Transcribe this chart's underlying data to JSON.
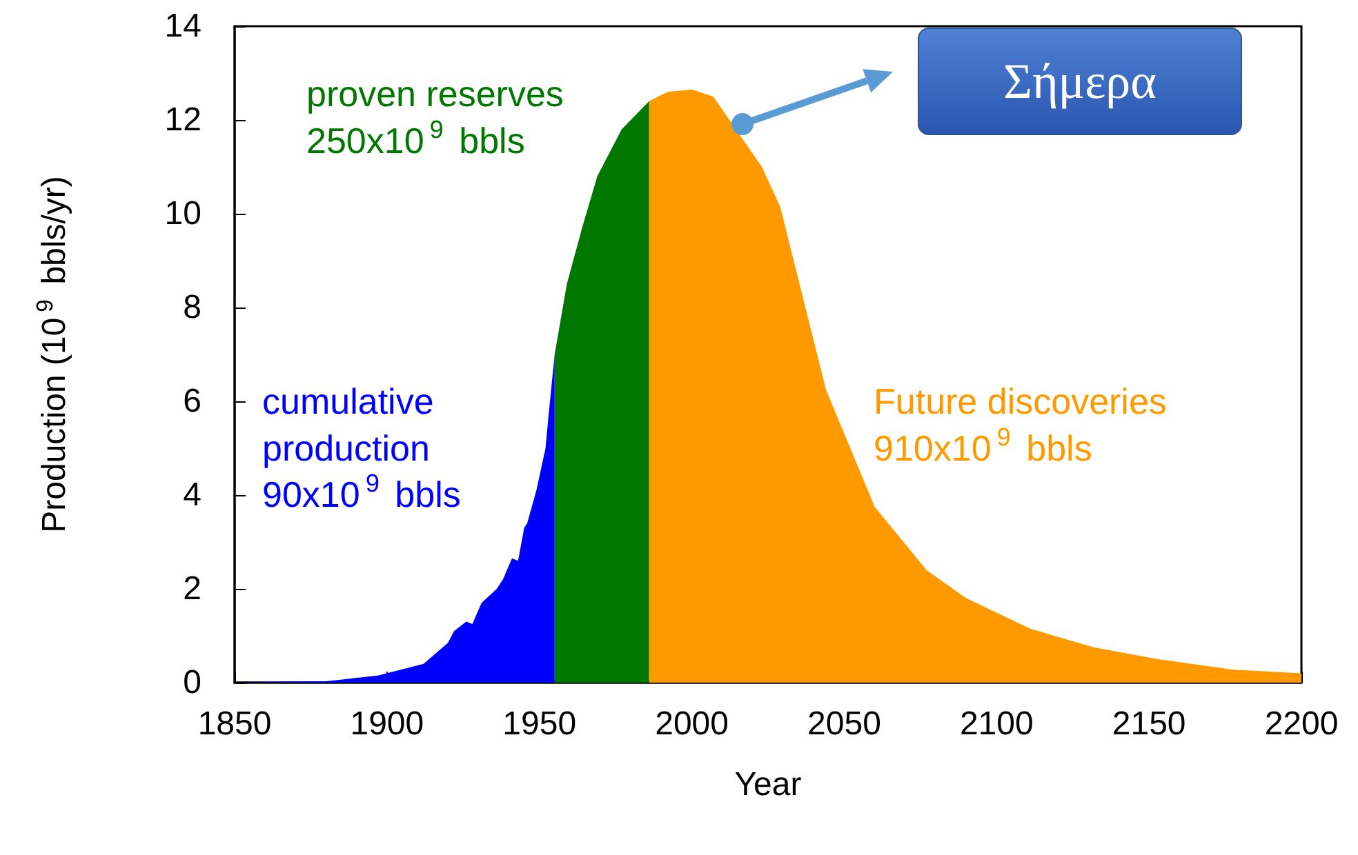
{
  "chart_data": {
    "type": "area",
    "xlabel": "Year",
    "ylabel": "Production (10$^{9}$ bbls/yr)",
    "xlim": [
      1850,
      2200
    ],
    "xticks": [
      1850,
      1900,
      1950,
      2000,
      2050,
      2100,
      2150,
      2200
    ],
    "ylim": [
      0,
      14
    ],
    "yticks": [
      0,
      2,
      4,
      6,
      8,
      10,
      12,
      14
    ],
    "grid": false,
    "legend": false,
    "series": [
      {
        "name": "cumulative\nproduction\n90x10$^{9}$ bbls",
        "color": "#0000ff",
        "x": [
          1850,
          1880,
          1897,
          1912,
          1920,
          1922,
          1926,
          1928,
          1931,
          1936,
          1938,
          1941,
          1943,
          1945,
          1946,
          1949,
          1952,
          1953,
          1955
        ],
        "values": [
          0,
          0.03,
          0.15,
          0.4,
          0.85,
          1.1,
          1.3,
          1.25,
          1.7,
          2.0,
          2.2,
          2.65,
          2.6,
          3.3,
          3.4,
          4.1,
          5.0,
          5.7,
          7.0
        ]
      },
      {
        "name": "proven reserves\n250x10$^{9}$ bbls",
        "color": "#007700",
        "x": [
          1955,
          1959,
          1964,
          1969,
          1977,
          1986
        ],
        "values": [
          7.0,
          8.5,
          9.7,
          10.8,
          11.8,
          12.4
        ]
      },
      {
        "name": "Future discoveries\n910x10$^{9}$ bbls",
        "color": "#ff9900",
        "x": [
          1986,
          1992,
          2000,
          2007,
          2023,
          2029,
          2044,
          2060,
          2077,
          2090,
          2111,
          2132,
          2153,
          2177,
          2200
        ],
        "values": [
          12.4,
          12.6,
          12.65,
          12.5,
          11.0,
          10.15,
          6.25,
          3.75,
          2.4,
          1.8,
          1.15,
          0.75,
          0.5,
          0.28,
          0.2
        ]
      }
    ],
    "annotations": [
      "Σήμερα"
    ]
  }
}
